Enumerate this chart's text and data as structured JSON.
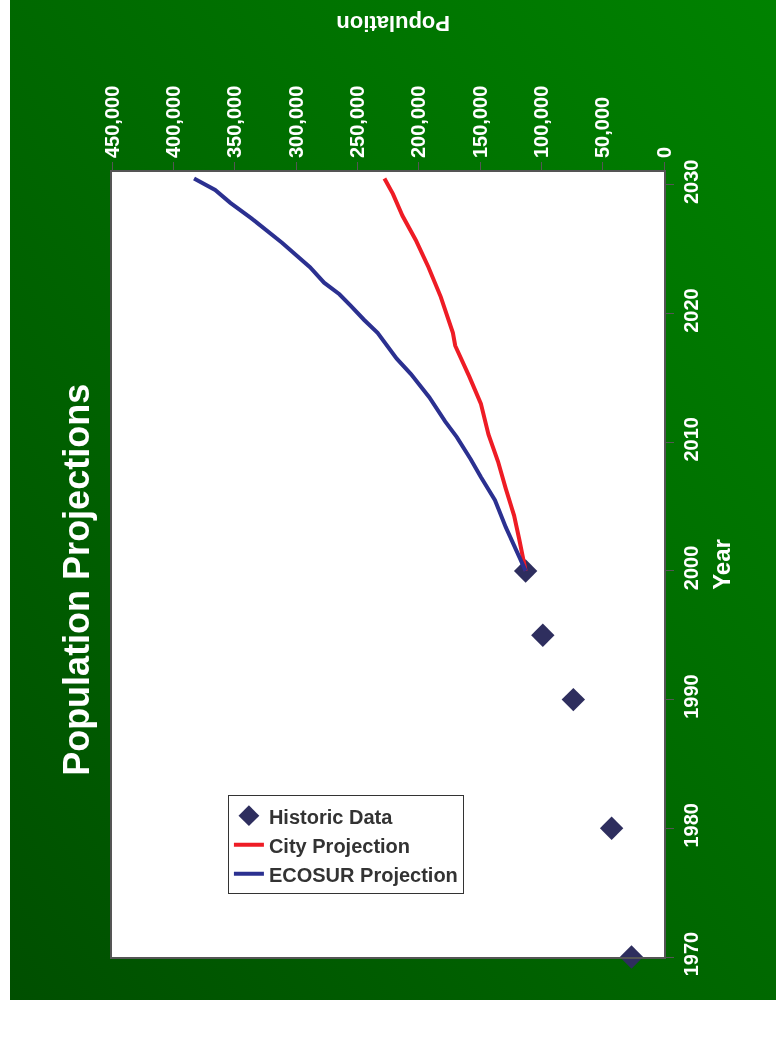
{
  "chart_data": {
    "type": "line",
    "title": "Population Projections",
    "xlabel": "Population",
    "ylabel": "Year",
    "xlim": [
      450000,
      0
    ],
    "xticks": [
      0,
      {
        "value": 50000,
        "label": "50,000"
      },
      {
        "value": 100000,
        "label": "100,000"
      },
      {
        "value": 150000,
        "label": "150,000"
      },
      {
        "value": 200000,
        "label": "200,000"
      },
      {
        "value": 250000,
        "label": "250,000"
      },
      {
        "value": 300000,
        "label": "300,000"
      },
      {
        "value": 350000,
        "label": "350,000"
      },
      {
        "value": 400000,
        "label": "400,000"
      },
      {
        "value": 450000,
        "label": "450,000"
      }
    ],
    "ylim": [
      1970,
      2031
    ],
    "yticks": [
      1970,
      1980,
      1990,
      2000,
      2010,
      2020,
      2030
    ],
    "grid": false,
    "legend": "bottom left",
    "series": [
      {
        "name": "Historic Data",
        "type": "scatter",
        "marker": "diamond",
        "color": "#2e2e5e",
        "x": [
          26500,
          42700,
          73900,
          98800,
          112800
        ],
        "values": [
          1970,
          1980,
          1990,
          1995,
          2000
        ]
      },
      {
        "name": "City Projection",
        "type": "line",
        "color": "#ee1c25",
        "x": [
          112800,
          118100,
          122200,
          129000,
          135300,
          143100,
          149300,
          158700,
          170200,
          172100,
          182000,
          192000,
          202300,
          213200,
          221000,
          227900
        ],
        "values": [
          2000,
          2002.5,
          2004.3,
          2006.4,
          2008.5,
          2010.6,
          2013.0,
          2015.1,
          2017.5,
          2018.5,
          2021.3,
          2023.6,
          2025.7,
          2027.6,
          2029.3,
          2030.5
        ]
      },
      {
        "name": "ECOSUR Projection",
        "type": "line",
        "color": "#2b3090",
        "x": [
          112800,
          129000,
          137800,
          149300,
          157700,
          168900,
          178300,
          191400,
          206300,
          217900,
          233500,
          244400,
          255300,
          264600,
          277100,
          288600,
          311400,
          336300,
          353500,
          365900,
          383100
        ],
        "values": [
          2000,
          2003.4,
          2005.5,
          2007.3,
          2008.7,
          2010.4,
          2011.6,
          2013.5,
          2015.3,
          2016.5,
          2018.5,
          2019.5,
          2020.6,
          2021.5,
          2022.4,
          2023.6,
          2025.5,
          2027.4,
          2028.6,
          2029.6,
          2030.5
        ]
      }
    ]
  }
}
